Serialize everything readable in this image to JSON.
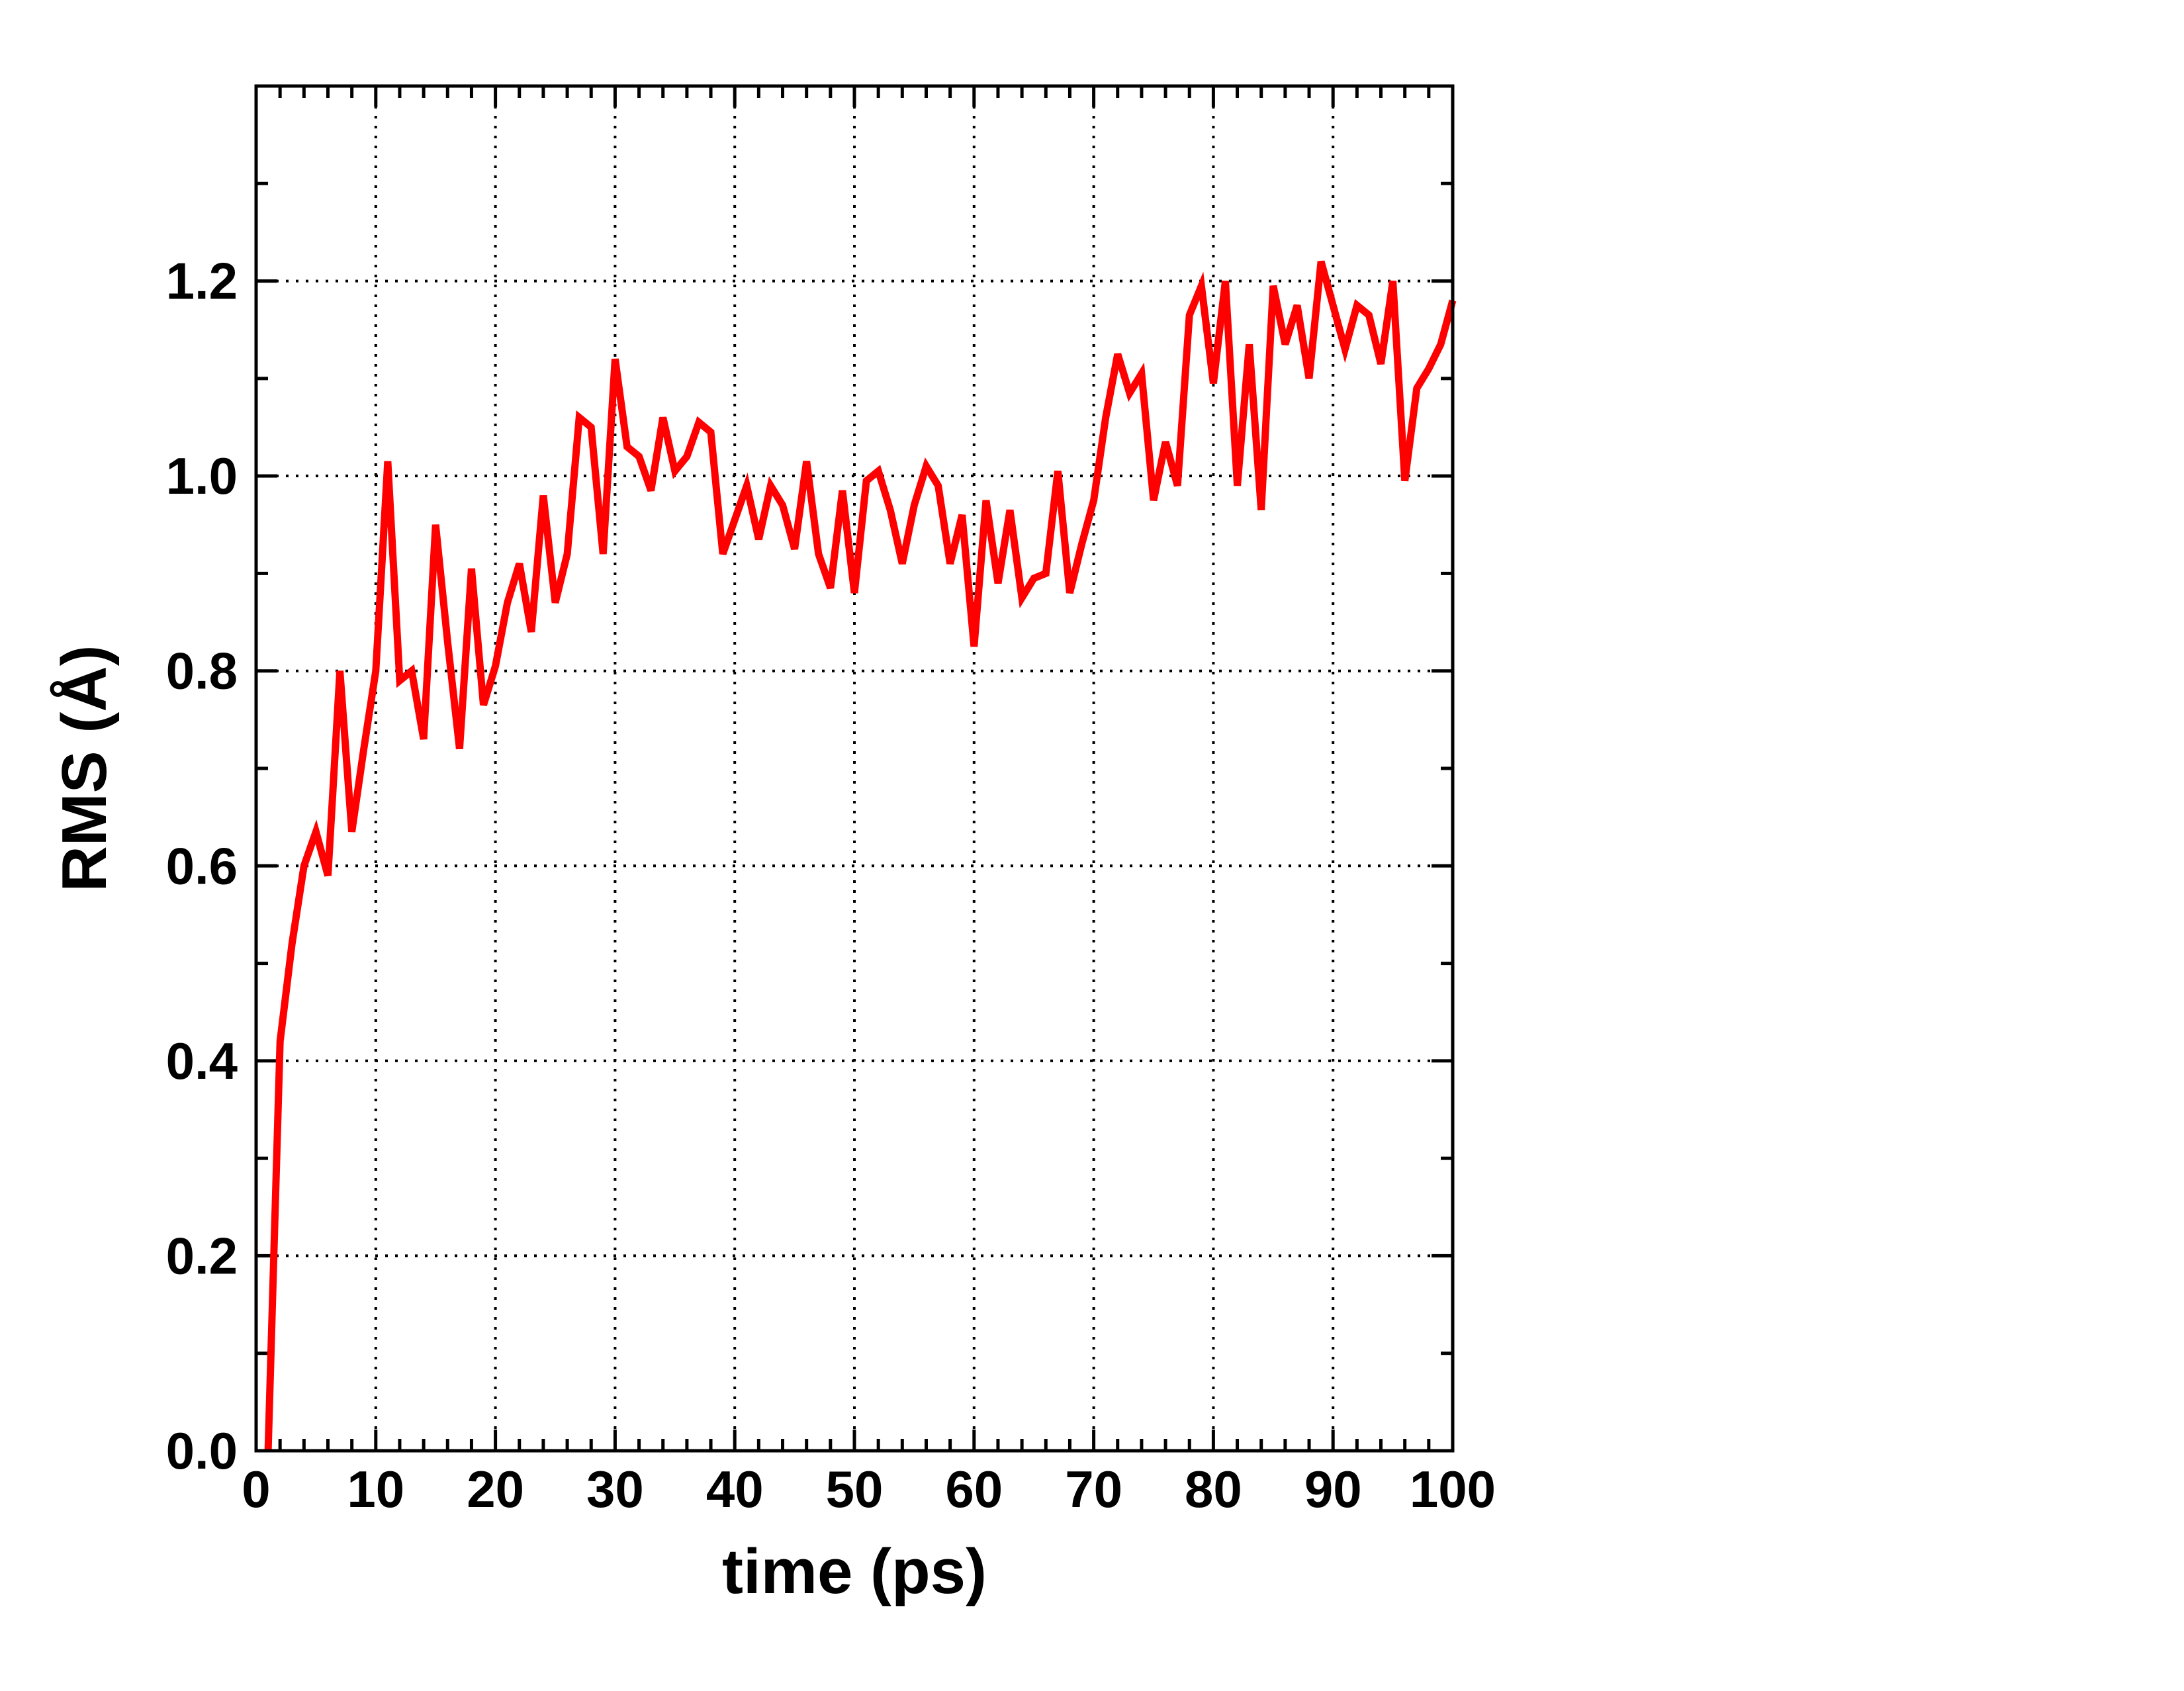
{
  "chart_data": {
    "type": "line",
    "xlabel": "time (ps)",
    "ylabel": "RMS (Å)",
    "xlim": [
      0,
      100
    ],
    "ylim": [
      0,
      1.4
    ],
    "x_ticks": [
      0,
      10,
      20,
      30,
      40,
      50,
      60,
      70,
      80,
      90,
      100
    ],
    "x_tick_labels": [
      "0",
      "10",
      "20",
      "30",
      "40",
      "50",
      "60",
      "70",
      "80",
      "90",
      "100"
    ],
    "x_minor_step": 2,
    "y_ticks": [
      0.0,
      0.2,
      0.4,
      0.6,
      0.8,
      1.0,
      1.2
    ],
    "y_tick_labels": [
      "0.0",
      "0.2",
      "0.4",
      "0.6",
      "0.8",
      "1.0",
      "1.2"
    ],
    "y_minor_step": 0.1,
    "grid": true,
    "legend": "none",
    "series": [
      {
        "color": "#ff0000",
        "x": [
          1,
          2,
          3,
          4,
          5,
          6,
          7,
          8,
          9,
          10,
          11,
          12,
          13,
          14,
          15,
          16,
          17,
          18,
          19,
          20,
          21,
          22,
          23,
          24,
          25,
          26,
          27,
          28,
          29,
          30,
          31,
          32,
          33,
          34,
          35,
          36,
          37,
          38,
          39,
          40,
          41,
          42,
          43,
          44,
          45,
          46,
          47,
          48,
          49,
          50,
          51,
          52,
          53,
          54,
          55,
          56,
          57,
          58,
          59,
          60,
          61,
          62,
          63,
          64,
          65,
          66,
          67,
          68,
          69,
          70,
          71,
          72,
          73,
          74,
          75,
          76,
          77,
          78,
          79,
          80,
          81,
          82,
          83,
          84,
          85,
          86,
          87,
          88,
          89,
          90,
          91,
          92,
          93,
          94,
          95,
          96,
          97,
          98,
          99,
          100
        ],
        "y": [
          0.0,
          0.42,
          0.52,
          0.6,
          0.635,
          0.59,
          0.8,
          0.635,
          0.72,
          0.8,
          1.015,
          0.79,
          0.8,
          0.73,
          0.95,
          0.83,
          0.72,
          0.905,
          0.765,
          0.805,
          0.87,
          0.91,
          0.84,
          0.98,
          0.87,
          0.92,
          1.06,
          1.05,
          0.92,
          1.12,
          1.03,
          1.02,
          0.985,
          1.06,
          1.005,
          1.02,
          1.055,
          1.045,
          0.92,
          0.955,
          0.99,
          0.935,
          0.99,
          0.97,
          0.925,
          1.015,
          0.92,
          0.885,
          0.985,
          0.88,
          0.995,
          1.005,
          0.965,
          0.91,
          0.97,
          1.01,
          0.99,
          0.91,
          0.96,
          0.825,
          0.975,
          0.89,
          0.965,
          0.875,
          0.895,
          0.9,
          1.005,
          0.88,
          0.93,
          0.975,
          1.06,
          1.125,
          1.085,
          1.105,
          0.975,
          1.035,
          0.99,
          1.165,
          1.195,
          1.095,
          1.2,
          0.99,
          1.135,
          0.965,
          1.195,
          1.135,
          1.175,
          1.1,
          1.22,
          1.175,
          1.13,
          1.175,
          1.165,
          1.115,
          1.2,
          0.995,
          1.09,
          1.11,
          1.135,
          1.18
        ]
      }
    ]
  }
}
